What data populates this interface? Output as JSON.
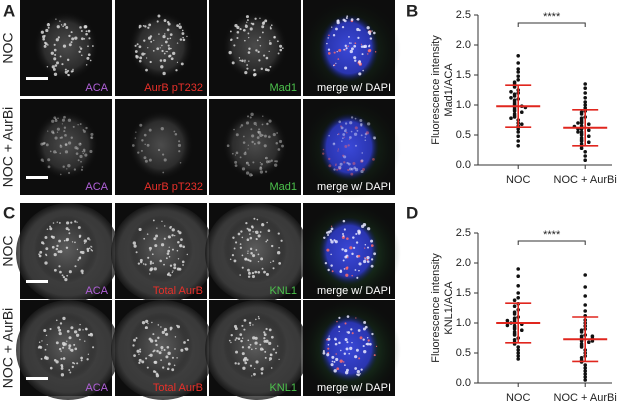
{
  "figure": {
    "A": {
      "label": "A",
      "rows": [
        "NOC",
        "NOC + AurBi"
      ],
      "channels": [
        "ACA",
        "AurB pT232",
        "Mad1",
        "merge w/ DAPI"
      ]
    },
    "C": {
      "label": "C",
      "rows": [
        "NOC",
        "NOC + AurBi"
      ],
      "channels": [
        "ACA",
        "Total AurB",
        "KNL1",
        "merge w/ DAPI"
      ]
    }
  },
  "chart_data": [
    {
      "type": "strip",
      "title": "B",
      "ylabel": [
        "Fluorescence intensity",
        "Mad1/ACA"
      ],
      "categories": [
        "NOC",
        "NOC + AurBi"
      ],
      "annotation": "****",
      "point_color": "#111111",
      "summary_color": "#e0261e",
      "ylim": [
        0,
        2.5
      ],
      "yticks": [
        {
          "value": 0,
          "label": "0.0"
        },
        0.5,
        {
          "value": 1,
          "label": "1.0"
        },
        1.5,
        {
          "value": 2,
          "label": "2.0"
        },
        2.5
      ],
      "groups": [
        {
          "mean": 0.98,
          "sd": 0.35,
          "values": [
            1.82,
            1.7,
            1.6,
            1.55,
            1.48,
            1.42,
            1.38,
            1.35,
            1.32,
            1.3,
            1.25,
            1.2,
            1.18,
            1.15,
            1.1,
            1.08,
            1.05,
            1.02,
            1.0,
            0.98,
            0.95,
            0.92,
            0.9,
            0.88,
            0.85,
            0.82,
            0.8,
            0.75,
            0.7,
            0.65,
            0.6,
            0.55,
            0.48,
            0.4,
            0.32,
            1.12,
            0.96,
            1.22,
            0.78,
            0.68
          ]
        },
        {
          "mean": 0.62,
          "sd": 0.3,
          "values": [
            1.35,
            1.28,
            1.2,
            1.12,
            1.05,
            1.0,
            0.95,
            0.9,
            0.88,
            0.85,
            0.8,
            0.78,
            0.75,
            0.72,
            0.7,
            0.68,
            0.65,
            0.62,
            0.6,
            0.58,
            0.55,
            0.52,
            0.5,
            0.48,
            0.45,
            0.42,
            0.4,
            0.38,
            0.35,
            0.32,
            0.28,
            0.22,
            0.15,
            0.08,
            0.6,
            0.64,
            0.55,
            0.7
          ]
        }
      ]
    },
    {
      "type": "strip",
      "title": "D",
      "ylabel": [
        "Fluorescence intensity",
        "KNL1/ACA"
      ],
      "categories": [
        "NOC",
        "NOC + AurBi"
      ],
      "annotation": "****",
      "point_color": "#111111",
      "summary_color": "#e0261e",
      "ylim": [
        0,
        2.5
      ],
      "yticks": [
        {
          "value": 0,
          "label": "0.0"
        },
        0.5,
        {
          "value": 1,
          "label": "1.0"
        },
        1.5,
        {
          "value": 2,
          "label": "2.0"
        },
        2.5
      ],
      "groups": [
        {
          "mean": 1.0,
          "sd": 0.33,
          "values": [
            1.9,
            1.78,
            1.62,
            1.5,
            1.42,
            1.38,
            1.32,
            1.28,
            1.22,
            1.18,
            1.15,
            1.1,
            1.08,
            1.05,
            1.02,
            1.0,
            0.98,
            0.95,
            0.92,
            0.9,
            0.88,
            0.85,
            0.82,
            0.8,
            0.75,
            0.72,
            0.68,
            0.65,
            0.6,
            0.55,
            0.5,
            0.45,
            0.4,
            1.0,
            1.04,
            0.96
          ]
        },
        {
          "mean": 0.73,
          "sd": 0.37,
          "values": [
            1.8,
            1.6,
            1.45,
            1.3,
            1.2,
            1.12,
            1.05,
            1.0,
            0.95,
            0.9,
            0.88,
            0.85,
            0.8,
            0.78,
            0.75,
            0.72,
            0.7,
            0.68,
            0.65,
            0.62,
            0.6,
            0.55,
            0.5,
            0.45,
            0.42,
            0.38,
            0.35,
            0.3,
            0.25,
            0.2,
            0.15,
            0.1,
            0.05,
            0.74,
            0.7,
            0.78
          ]
        }
      ]
    }
  ]
}
